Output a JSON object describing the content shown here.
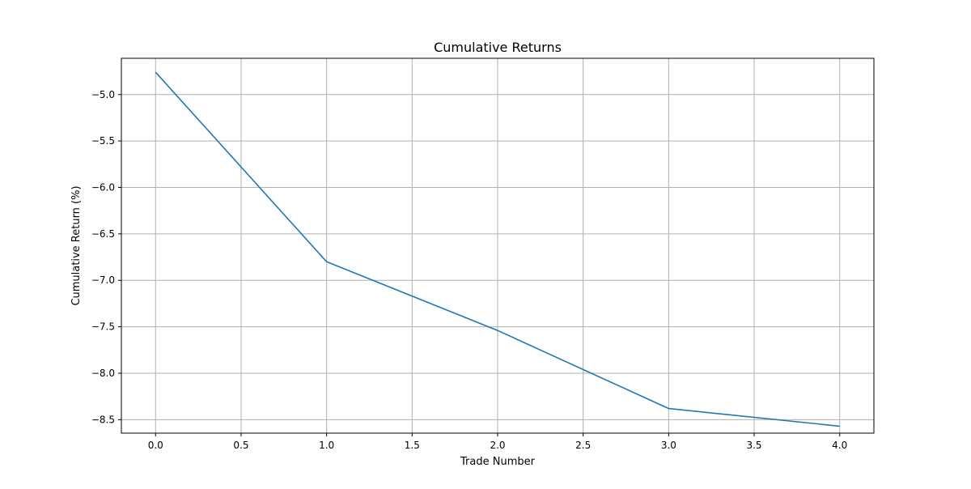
{
  "chart_data": {
    "type": "line",
    "title": "Cumulative Returns",
    "xlabel": "Trade Number",
    "ylabel": "Cumulative Return (%)",
    "xlim": [
      -0.2,
      4.2
    ],
    "ylim": [
      -8.645,
      -4.61
    ],
    "x_ticks": [
      0.0,
      0.5,
      1.0,
      1.5,
      2.0,
      2.5,
      3.0,
      3.5,
      4.0
    ],
    "x_tick_labels": [
      "0.0",
      "0.5",
      "1.0",
      "1.5",
      "2.0",
      "2.5",
      "3.0",
      "3.5",
      "4.0"
    ],
    "y_ticks": [
      -5.0,
      -5.5,
      -6.0,
      -6.5,
      -7.0,
      -7.5,
      -8.0,
      -8.5
    ],
    "y_tick_labels": [
      "−5.0",
      "−5.5",
      "−6.0",
      "−6.5",
      "−7.0",
      "−7.5",
      "−8.0",
      "−8.5"
    ],
    "grid": true,
    "series": [
      {
        "color": "#1f77b4",
        "x": [
          0,
          1,
          2,
          3,
          4
        ],
        "values": [
          -4.76,
          -6.8,
          -7.54,
          -8.38,
          -8.57
        ]
      }
    ]
  }
}
